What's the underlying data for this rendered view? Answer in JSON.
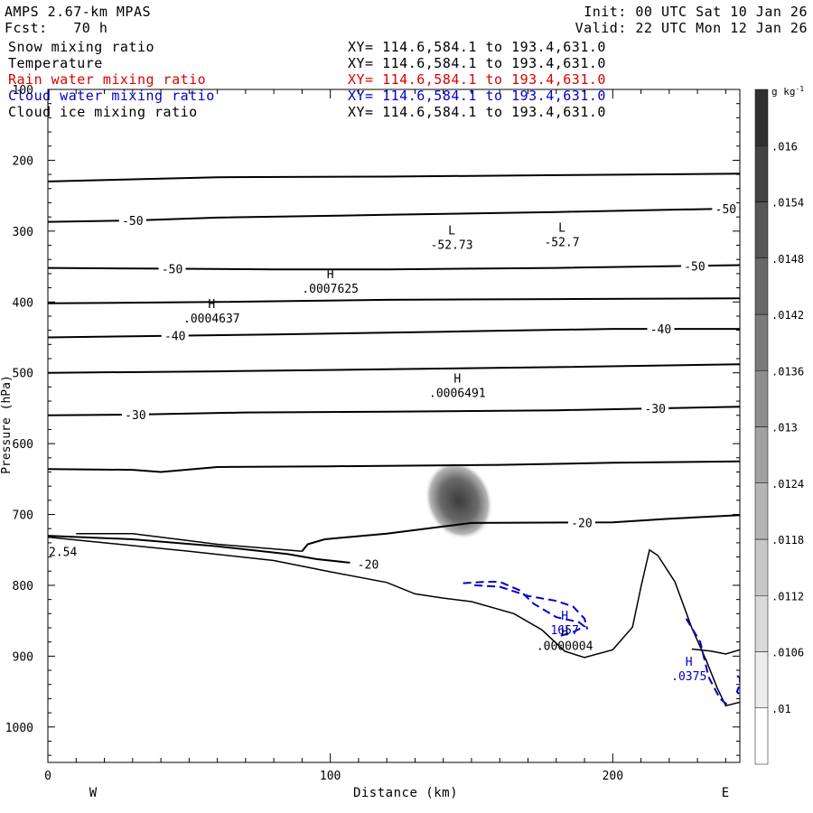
{
  "header": {
    "title": "AMPS 2.67-km MPAS",
    "init": "Init: 00 UTC Sat 10 Jan 26",
    "fcst": "Fcst:   70 h",
    "valid": "Valid: 22 UTC Mon 12 Jan 26"
  },
  "legend": [
    {
      "label": "Snow mixing ratio",
      "xy": "XY= 114.6,584.1 to 193.4,631.0",
      "color": "#000000"
    },
    {
      "label": "Temperature",
      "xy": "XY= 114.6,584.1 to 193.4,631.0",
      "color": "#000000"
    },
    {
      "label": "Rain water mixing ratio",
      "xy": "XY= 114.6,584.1 to 193.4,631.0",
      "color": "#dd0000"
    },
    {
      "label": "Cloud water mixing ratio",
      "xy": "XY= 114.6,584.1 to 193.4,631.0",
      "color": "#0000cc"
    },
    {
      "label": "Cloud ice mixing ratio",
      "xy": "XY= 114.6,584.1 to 193.4,631.0",
      "color": "#000000"
    }
  ],
  "chart_data": {
    "type": "cross-section contour",
    "xlabel": "Distance (km)",
    "ylabel": "Pressure (hPa)",
    "xlim": [
      0,
      245
    ],
    "ylim": [
      100,
      1050
    ],
    "y_scale": "linear, inverted",
    "x_ticks": [
      0,
      100,
      200
    ],
    "y_ticks": [
      100,
      200,
      300,
      400,
      500,
      600,
      700,
      800,
      900,
      1000
    ],
    "direction_labels": [
      "W",
      "E"
    ],
    "colorbar": {
      "unit": "g kg-1",
      "levels": [
        ".01",
        ".0106",
        ".0112",
        ".0118",
        ".0124",
        ".013",
        ".0136",
        ".0142",
        ".0148",
        ".0154",
        ".016"
      ]
    },
    "isotherms": [
      {
        "points": [
          [
            0,
            230
          ],
          [
            60,
            224
          ],
          [
            120,
            223
          ],
          [
            180,
            221
          ],
          [
            245,
            219
          ]
        ],
        "labels": []
      },
      {
        "points": [
          [
            0,
            287
          ],
          [
            30,
            285
          ],
          [
            60,
            281
          ],
          [
            120,
            277
          ],
          [
            180,
            273
          ],
          [
            245,
            268
          ]
        ],
        "labels": [
          {
            "text": "-50",
            "x": 30
          },
          {
            "text": "-50",
            "x": 240
          }
        ]
      },
      {
        "points": [
          [
            0,
            352
          ],
          [
            40,
            353
          ],
          [
            80,
            354
          ],
          [
            120,
            354
          ],
          [
            180,
            352
          ],
          [
            245,
            348
          ]
        ],
        "labels": [
          {
            "text": "-50",
            "x": 44
          },
          {
            "text": "-50",
            "x": 229
          }
        ]
      },
      {
        "points": [
          [
            0,
            402
          ],
          [
            60,
            400
          ],
          [
            120,
            397
          ],
          [
            180,
            396
          ],
          [
            245,
            395
          ]
        ],
        "labels": []
      },
      {
        "points": [
          [
            0,
            450
          ],
          [
            40,
            448
          ],
          [
            80,
            446
          ],
          [
            140,
            442
          ],
          [
            200,
            438
          ],
          [
            245,
            438
          ]
        ],
        "labels": [
          {
            "text": "-40",
            "x": 45
          },
          {
            "text": "-40",
            "x": 217
          }
        ]
      },
      {
        "points": [
          [
            0,
            500
          ],
          [
            60,
            498
          ],
          [
            120,
            495
          ],
          [
            180,
            492
          ],
          [
            245,
            488
          ]
        ],
        "labels": []
      },
      {
        "points": [
          [
            0,
            560
          ],
          [
            30,
            559
          ],
          [
            70,
            556
          ],
          [
            120,
            555
          ],
          [
            180,
            553
          ],
          [
            245,
            548
          ]
        ],
        "labels": [
          {
            "text": "-30",
            "x": 31
          },
          {
            "text": "-30",
            "x": 215
          }
        ]
      },
      {
        "points": [
          [
            0,
            636
          ],
          [
            30,
            637
          ],
          [
            40,
            640
          ],
          [
            60,
            633
          ],
          [
            100,
            632
          ],
          [
            160,
            630
          ],
          [
            200,
            627
          ],
          [
            245,
            625
          ]
        ],
        "labels": []
      },
      {
        "points": [
          [
            90,
            752
          ],
          [
            92,
            742
          ],
          [
            98,
            735
          ],
          [
            120,
            727
          ],
          [
            150,
            712
          ],
          [
            200,
            711
          ],
          [
            220,
            706
          ],
          [
            245,
            701
          ]
        ],
        "labels": [
          {
            "text": "-20",
            "x": 189
          }
        ]
      }
    ],
    "warm_contour": {
      "points": [
        [
          0,
          730
        ],
        [
          30,
          735
        ],
        [
          60,
          745
        ],
        [
          85,
          756
        ],
        [
          95,
          763
        ],
        [
          107,
          768
        ]
      ],
      "label": {
        "text": "-20",
        "x": 115
      }
    },
    "terrain": {
      "points": [
        [
          0,
          732
        ],
        [
          20,
          740
        ],
        [
          50,
          752
        ],
        [
          80,
          765
        ],
        [
          100,
          781
        ],
        [
          120,
          796
        ],
        [
          130,
          812
        ],
        [
          140,
          818
        ],
        [
          150,
          823
        ],
        [
          165,
          840
        ],
        [
          175,
          863
        ],
        [
          183,
          893
        ],
        [
          190,
          902
        ],
        [
          200,
          891
        ],
        [
          207,
          859
        ],
        [
          210,
          802
        ],
        [
          213,
          750
        ],
        [
          216,
          758
        ],
        [
          222,
          795
        ],
        [
          228,
          860
        ],
        [
          233,
          905
        ],
        [
          237,
          945
        ],
        [
          240,
          970
        ],
        [
          245,
          965
        ]
      ]
    },
    "terrain_inner": {
      "points": [
        [
          10,
          727
        ],
        [
          30,
          727
        ],
        [
          60,
          742
        ],
        [
          90,
          752
        ]
      ]
    },
    "terrain_east": {
      "points": [
        [
          228,
          890
        ],
        [
          235,
          893
        ],
        [
          240,
          897
        ],
        [
          245,
          891
        ]
      ]
    },
    "cloud_water_contours": [
      {
        "points": [
          [
            147,
            797
          ],
          [
            155,
            795
          ],
          [
            160,
            795
          ],
          [
            167,
            807
          ],
          [
            172,
            826
          ],
          [
            180,
            845
          ],
          [
            188,
            852
          ],
          [
            190,
            858
          ],
          [
            186,
            866
          ],
          [
            181,
            872
          ]
        ],
        "dashed": true
      },
      {
        "points": [
          [
            151,
            800
          ],
          [
            160,
            802
          ],
          [
            170,
            815
          ],
          [
            180,
            822
          ],
          [
            186,
            830
          ],
          [
            190,
            847
          ],
          [
            191,
            862
          ]
        ],
        "dashed": true
      },
      {
        "points": [
          [
            226,
            847
          ],
          [
            231,
            880
          ],
          [
            234,
            930
          ],
          [
            238,
            960
          ],
          [
            241,
            970
          ]
        ],
        "dashed": true
      },
      {
        "points": [
          [
            244,
            928
          ],
          [
            245,
            930
          ],
          [
            245,
            940
          ],
          [
            244,
            950
          ],
          [
            245,
            955
          ]
        ],
        "dashed": true
      }
    ],
    "ice_blob": {
      "x": 145.5,
      "p": 680,
      "rx_km": 4.5,
      "ry_hpa": 60,
      "value": 0.016
    },
    "extrema": [
      {
        "type": "L",
        "value": "-52.73",
        "x": 143,
        "p": 316
      },
      {
        "type": "L",
        "value": "-52.7",
        "x": 182,
        "p": 312
      },
      {
        "type": "H",
        "value": ".0007625",
        "x": 100,
        "p": 378
      },
      {
        "type": "H",
        "value": ".0004637",
        "x": 58,
        "p": 420
      },
      {
        "type": "H",
        "value": ".0006491",
        "x": 145,
        "p": 525
      },
      {
        "type": "H",
        "value": ".0000004",
        "x": 183,
        "p": 882
      },
      {
        "type": "H",
        "value": "1657",
        "x": 183,
        "p": 860,
        "color": "#0000cc"
      },
      {
        "type": "H",
        "value": ".0375",
        "x": 227,
        "p": 925,
        "color": "#0000cc"
      }
    ],
    "edge_label": {
      "text": "2.54",
      "x": 0,
      "p": 752
    }
  }
}
